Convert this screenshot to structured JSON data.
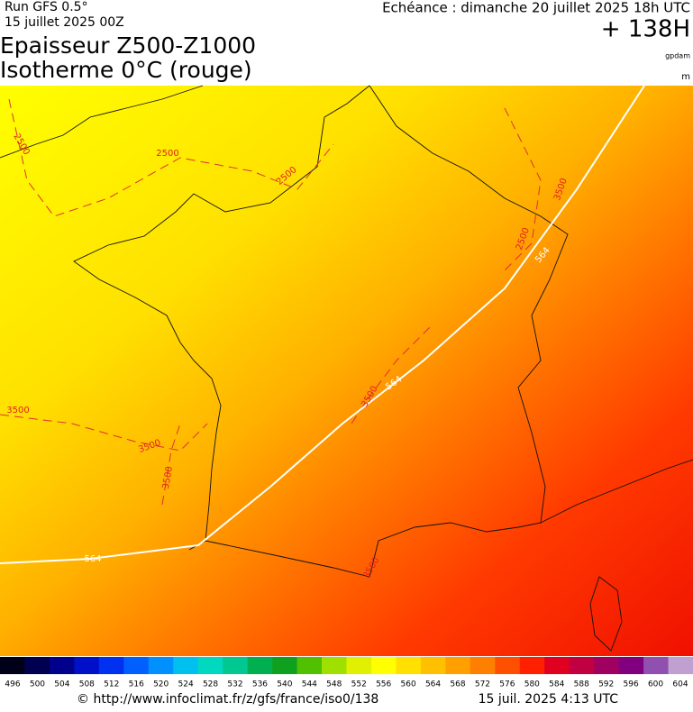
{
  "header": {
    "run": "Run GFS 0.5°",
    "date": "15 juillet 2025 00Z",
    "title_line1": "Epaisseur Z500-Z1000",
    "title_line2": "Isotherme 0°C (rouge)",
    "forecast": "Echéance : dimanche 20 juillet 2025 18h UTC",
    "lead": "+ 138H",
    "unit_thickness": "gpdam",
    "unit_isotherm": "m"
  },
  "map": {
    "contour_labels": [
      "2500",
      "2500",
      "2500",
      "2500",
      "3500",
      "3500",
      "3500",
      "3500",
      "3500",
      "3500",
      "564",
      "564",
      "564"
    ]
  },
  "legend": {
    "values": [
      496,
      500,
      504,
      508,
      512,
      516,
      520,
      524,
      528,
      532,
      536,
      540,
      544,
      548,
      552,
      556,
      560,
      564,
      568,
      572,
      576,
      580,
      584,
      588,
      592,
      596,
      600,
      604
    ],
    "colors": [
      "#000018",
      "#000050",
      "#00008c",
      "#0010c8",
      "#0030f0",
      "#0060ff",
      "#0090ff",
      "#00c0f0",
      "#00d8c0",
      "#00c890",
      "#00b050",
      "#10a020",
      "#50c000",
      "#a0e000",
      "#e0f000",
      "#ffff00",
      "#ffe000",
      "#ffc000",
      "#ffa000",
      "#ff8000",
      "#ff5000",
      "#ff2000",
      "#e00020",
      "#c00040",
      "#a00060",
      "#800080",
      "#9050b0",
      "#c0a0d0"
    ]
  },
  "footer": {
    "url": "© http://www.infoclimat.fr/z/gfs/france/iso0/138",
    "generated": "15 juil. 2025  4:13 UTC"
  }
}
